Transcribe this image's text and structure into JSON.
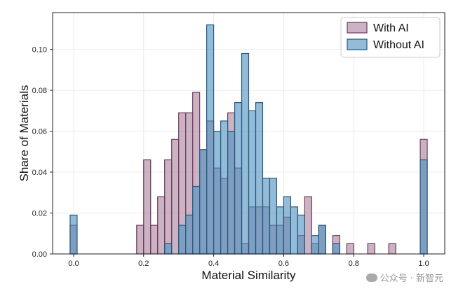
{
  "chart_data": {
    "type": "bar",
    "subtype": "overlaid-histogram",
    "title": "",
    "xlabel": "Material Similarity",
    "ylabel": "Share of Materials",
    "xlim": [
      -0.06,
      1.06
    ],
    "ylim": [
      0,
      0.118
    ],
    "xticks": [
      "0.0",
      "0.2",
      "0.4",
      "0.6",
      "0.8",
      "1.0"
    ],
    "yticks": [
      "0.00",
      "0.02",
      "0.04",
      "0.06",
      "0.08",
      "0.10"
    ],
    "bin_width": 0.02,
    "grid": true,
    "legend_position": "top-right",
    "series": [
      {
        "name": "With AI",
        "color": "#a9809d",
        "edge": "#6b3a5a",
        "x": [
          0.0,
          0.19,
          0.21,
          0.23,
          0.25,
          0.27,
          0.29,
          0.31,
          0.33,
          0.35,
          0.37,
          0.39,
          0.41,
          0.43,
          0.45,
          0.47,
          0.49,
          0.51,
          0.53,
          0.55,
          0.57,
          0.59,
          0.61,
          0.65,
          0.67,
          0.69,
          0.71,
          0.75,
          0.79,
          0.85,
          0.91,
          1.0
        ],
        "values": [
          0.014,
          0.014,
          0.046,
          0.014,
          0.028,
          0.046,
          0.056,
          0.069,
          0.069,
          0.079,
          0.051,
          0.065,
          0.042,
          0.037,
          0.069,
          0.042,
          0.005,
          0.023,
          0.023,
          0.023,
          0.014,
          0.014,
          0.018,
          0.009,
          0.028,
          0.005,
          0.014,
          0.009,
          0.005,
          0.005,
          0.005,
          0.056
        ]
      },
      {
        "name": "Without AI",
        "color": "#4f8fbd",
        "edge": "#1f5a85",
        "x": [
          0.0,
          0.27,
          0.31,
          0.33,
          0.35,
          0.37,
          0.39,
          0.41,
          0.43,
          0.45,
          0.47,
          0.49,
          0.51,
          0.53,
          0.55,
          0.57,
          0.59,
          0.61,
          0.63,
          0.65,
          0.69,
          0.71,
          0.75,
          1.0
        ],
        "values": [
          0.019,
          0.005,
          0.014,
          0.019,
          0.033,
          0.051,
          0.112,
          0.06,
          0.065,
          0.06,
          0.074,
          0.098,
          0.07,
          0.074,
          0.037,
          0.037,
          0.023,
          0.028,
          0.023,
          0.019,
          0.009,
          0.014,
          0.005,
          0.046
        ]
      }
    ]
  },
  "watermark": {
    "text": "公众号 · 新智元"
  }
}
